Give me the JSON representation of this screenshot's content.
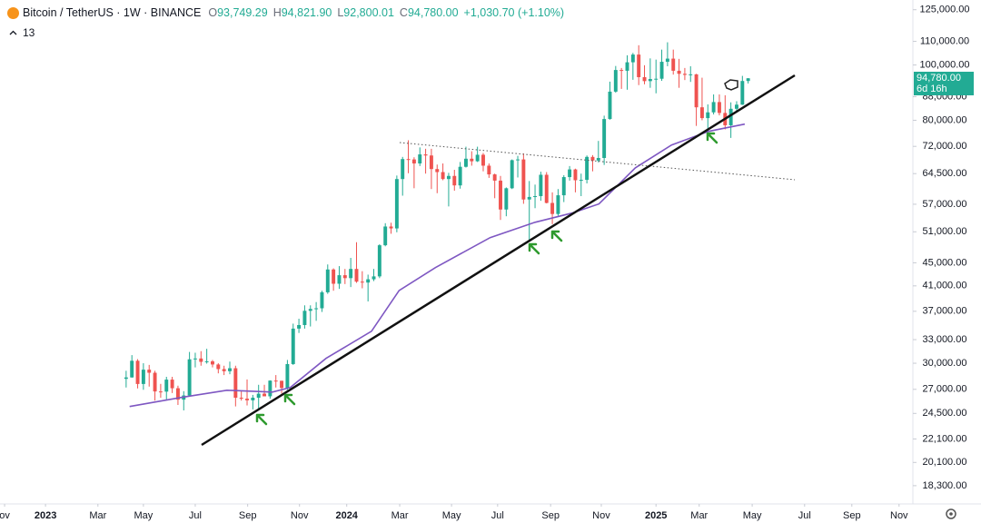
{
  "header": {
    "symbol": "Bitcoin / TetherUS · 1W · BINANCE",
    "o_label": "O",
    "o_value": "93,749.29",
    "h_label": "H",
    "h_value": "94,821.90",
    "l_label": "L",
    "l_value": "92,800.01",
    "c_label": "C",
    "c_value": "94,780.00",
    "change": "+1,030.70 (+1.10%)",
    "indicator_count": "13",
    "price_tag": "94,780.00",
    "countdown": "6d 16h"
  },
  "chart_data": {
    "type": "candlestick",
    "log_scale": true,
    "grid": false,
    "up_color": "#22ab94",
    "down_color": "#ef5350",
    "ylim": [
      17000,
      130000
    ],
    "yticks": [
      {
        "value": 125000,
        "label": "125,000.00"
      },
      {
        "value": 110000,
        "label": "110,000.00"
      },
      {
        "value": 100000,
        "label": "100,000.00"
      },
      {
        "value": 88000,
        "label": "88,000.00"
      },
      {
        "value": 80000,
        "label": "80,000.00"
      },
      {
        "value": 72000,
        "label": "72,000.00"
      },
      {
        "value": 64500,
        "label": "64,500.00"
      },
      {
        "value": 57000,
        "label": "57,000.00"
      },
      {
        "value": 51000,
        "label": "51,000.00"
      },
      {
        "value": 45000,
        "label": "45,000.00"
      },
      {
        "value": 41000,
        "label": "41,000.00"
      },
      {
        "value": 37000,
        "label": "37,000.00"
      },
      {
        "value": 33000,
        "label": "33,000.00"
      },
      {
        "value": 30000,
        "label": "30,000.00"
      },
      {
        "value": 27000,
        "label": "27,000.00"
      },
      {
        "value": 24500,
        "label": "24,500.00"
      },
      {
        "value": 22100,
        "label": "22,100.00"
      },
      {
        "value": 20100,
        "label": "20,100.00"
      },
      {
        "value": 18300,
        "label": "18,300.00"
      }
    ],
    "xlim": [
      -21.9,
      136.6
    ],
    "xticks": [
      {
        "value": -21.1,
        "label": "ov"
      },
      {
        "value": -14.0,
        "label": "2023"
      },
      {
        "value": -4.9,
        "label": "Mar"
      },
      {
        "value": 3.0,
        "label": "May"
      },
      {
        "value": 12.0,
        "label": "Jul"
      },
      {
        "value": 21.1,
        "label": "Sep"
      },
      {
        "value": 30.1,
        "label": "Nov"
      },
      {
        "value": 38.3,
        "label": "2024"
      },
      {
        "value": 47.5,
        "label": "Mar"
      },
      {
        "value": 56.5,
        "label": "May"
      },
      {
        "value": 64.5,
        "label": "Jul"
      },
      {
        "value": 73.7,
        "label": "Sep"
      },
      {
        "value": 82.5,
        "label": "Nov"
      },
      {
        "value": 92.0,
        "label": "2025"
      },
      {
        "value": 99.5,
        "label": "Mar"
      },
      {
        "value": 108.7,
        "label": "May"
      },
      {
        "value": 117.8,
        "label": "Jul"
      },
      {
        "value": 126.0,
        "label": "Sep"
      },
      {
        "value": 134.2,
        "label": "Nov"
      }
    ],
    "candles": {
      "open": [
        28170,
        28330,
        30300,
        27590,
        29230,
        28870,
        26770,
        26750,
        28080,
        27120,
        25900,
        26340,
        30480,
        30580,
        30170,
        30230,
        29850,
        29300,
        29050,
        29400,
        26100,
        26000,
        25830,
        26100,
        26530,
        26250,
        27970,
        27950,
        27150,
        29900,
        34500,
        35000,
        37070,
        37350,
        37450,
        39950,
        43800,
        41350,
        42800,
        42300,
        43900,
        41700,
        41550,
        42100,
        42600,
        48300,
        52100,
        51700,
        63100,
        68400,
        68300,
        67200,
        69700,
        69400,
        65700,
        64900,
        63100,
        63900,
        61500,
        66300,
        68500,
        67800,
        69600,
        66600,
        64300,
        62700,
        55800,
        60800,
        68100,
        68300,
        58100,
        58700,
        58900,
        64200,
        57300,
        54800,
        59100,
        63600,
        65600,
        62800,
        62900,
        69000,
        68000,
        68700,
        80400,
        89800,
        98000,
        97700,
        101100,
        104300,
        95200,
        93700,
        94500,
        94600,
        101300,
        102600,
        97700,
        96500,
        96100,
        96300,
        84300,
        80700,
        82600,
        86100,
        82400,
        78400,
        83800,
        85200,
        93749.29
      ],
      "high": [
        29100,
        31000,
        30500,
        30000,
        29800,
        29100,
        27600,
        28400,
        28400,
        27400,
        26800,
        31400,
        31300,
        31500,
        31800,
        30400,
        30000,
        29700,
        30200,
        29700,
        26800,
        28100,
        26400,
        27500,
        27500,
        28000,
        28600,
        27950,
        30400,
        35200,
        35900,
        37900,
        37900,
        38400,
        40200,
        44700,
        44000,
        44400,
        43900,
        45900,
        48900,
        43500,
        42900,
        43900,
        48500,
        52800,
        52900,
        64000,
        69000,
        73800,
        68900,
        71700,
        71300,
        71300,
        66900,
        67200,
        64700,
        65500,
        67600,
        71900,
        70600,
        71900,
        70100,
        67200,
        64500,
        63900,
        61000,
        68300,
        69300,
        70000,
        62600,
        61700,
        65000,
        64900,
        59800,
        60600,
        64100,
        66500,
        65800,
        64500,
        69400,
        69500,
        73600,
        81500,
        93500,
        99600,
        98800,
        104000,
        105000,
        108300,
        99900,
        102700,
        102200,
        106400,
        109600,
        106400,
        102500,
        98800,
        99500,
        96500,
        95000,
        85300,
        88800,
        88800,
        88500,
        86000,
        86400,
        95700,
        94821.9
      ],
      "low": [
        27200,
        28300,
        27100,
        26950,
        27300,
        25800,
        26100,
        25900,
        26600,
        25350,
        24800,
        26250,
        29500,
        29700,
        29950,
        29500,
        28800,
        28600,
        28700,
        25200,
        25800,
        25300,
        24900,
        24900,
        26300,
        26000,
        27200,
        26550,
        26950,
        29800,
        33900,
        34500,
        34800,
        35600,
        36900,
        39700,
        40200,
        40500,
        41300,
        40800,
        41500,
        40600,
        38500,
        41800,
        42300,
        48100,
        50600,
        50900,
        59000,
        64600,
        60800,
        66500,
        64500,
        60600,
        59600,
        62800,
        56500,
        60200,
        60700,
        66100,
        66600,
        67600,
        65100,
        63400,
        58400,
        53500,
        54300,
        60600,
        63500,
        57100,
        49100,
        56100,
        57800,
        57200,
        52600,
        54400,
        57500,
        62700,
        59800,
        58900,
        62000,
        65100,
        67500,
        66800,
        80200,
        89400,
        90800,
        90500,
        94200,
        92200,
        92500,
        91200,
        89200,
        93800,
        99500,
        96200,
        91200,
        94100,
        93400,
        78200,
        80000,
        76600,
        81900,
        81600,
        77100,
        74500,
        83100,
        85100,
        92800.01
      ],
      "close": [
        28330,
        30300,
        27590,
        29230,
        28870,
        26770,
        26750,
        28080,
        27120,
        25900,
        26340,
        30480,
        30580,
        30170,
        30230,
        29850,
        29300,
        29050,
        29400,
        26100,
        26000,
        25830,
        26100,
        26530,
        26250,
        27970,
        27950,
        27150,
        29900,
        34500,
        35000,
        37070,
        37350,
        37450,
        39950,
        43800,
        41350,
        42800,
        42300,
        43900,
        41700,
        41550,
        42100,
        42600,
        48300,
        52100,
        51700,
        63100,
        68400,
        68300,
        67200,
        69700,
        69400,
        65700,
        64900,
        63100,
        63900,
        61500,
        66300,
        68500,
        67800,
        69600,
        66600,
        64300,
        62700,
        55800,
        60800,
        68100,
        68300,
        58100,
        58700,
        58900,
        64200,
        57300,
        54800,
        59100,
        63600,
        65600,
        62800,
        62900,
        69000,
        68000,
        68700,
        80400,
        89800,
        98000,
        97700,
        101100,
        104300,
        95200,
        93700,
        94500,
        94600,
        101300,
        102600,
        97700,
        96500,
        96100,
        96300,
        84300,
        80700,
        82600,
        86100,
        82400,
        78400,
        83800,
        85200,
        93749.29,
        94780
      ]
    },
    "ma": {
      "color": "#7e57c2",
      "x": [
        0.6,
        9.6,
        17.5,
        25.4,
        28.5,
        34.7,
        42.6,
        47.4,
        53.7,
        63.2,
        71.0,
        77.4,
        82.1,
        88.4,
        94.7,
        101.1,
        107.4
      ],
      "values": [
        25190,
        26130,
        26900,
        26700,
        27200,
        30590,
        34140,
        40250,
        44140,
        49810,
        53000,
        55000,
        57060,
        66000,
        72400,
        76500,
        78760
      ]
    }
  }
}
